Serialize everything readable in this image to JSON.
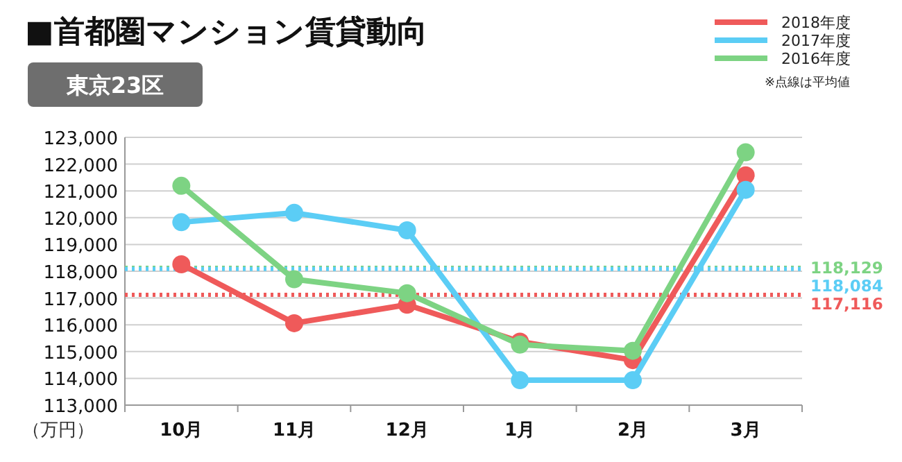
{
  "chart_data": {
    "type": "line",
    "title": "■首都圏マンション賃貸動向",
    "subtitle": "東京23区",
    "ylabel": "（万円）",
    "categories": [
      "10月",
      "11月",
      "12月",
      "1月",
      "2月",
      "3月"
    ],
    "series": [
      {
        "name": "2018年度",
        "color": "#ef5a5a",
        "values": [
          118260,
          116060,
          116750,
          115370,
          114680,
          121580
        ]
      },
      {
        "name": "2017年度",
        "color": "#5bcdf5",
        "values": [
          119830,
          120180,
          119530,
          113930,
          113930,
          121040
        ]
      },
      {
        "name": "2016年度",
        "color": "#7dd383",
        "values": [
          121190,
          117700,
          117180,
          115260,
          115030,
          122440
        ]
      }
    ],
    "ylim": [
      113000,
      123000
    ],
    "yticks": [
      {
        "value": 113000,
        "label": "113,000"
      },
      {
        "value": 114000,
        "label": "114,000"
      },
      {
        "value": 115000,
        "label": "115,000"
      },
      {
        "value": 116000,
        "label": "116,000"
      },
      {
        "value": 117000,
        "label": "117,000"
      },
      {
        "value": 118000,
        "label": "118,000"
      },
      {
        "value": 119000,
        "label": "119,000"
      },
      {
        "value": 120000,
        "label": "120,000"
      },
      {
        "value": 121000,
        "label": "121,000"
      },
      {
        "value": 122000,
        "label": "122,000"
      },
      {
        "value": 123000,
        "label": "123,000"
      }
    ],
    "grid": "y",
    "legend": "top right",
    "marker": "circle",
    "line_style": "solid",
    "ref_lines": [
      {
        "axis": "y",
        "value": 118129,
        "label": "118,129",
        "color": "#7dd383",
        "line_style": "dotted"
      },
      {
        "axis": "y",
        "value": 118084,
        "label": "118,084",
        "color": "#5bcdf5",
        "line_style": "dotted"
      },
      {
        "axis": "y",
        "value": 117116,
        "label": "117,116",
        "color": "#ef5a5a",
        "line_style": "dotted"
      }
    ],
    "annotations": [
      "※点線は平均値"
    ]
  }
}
